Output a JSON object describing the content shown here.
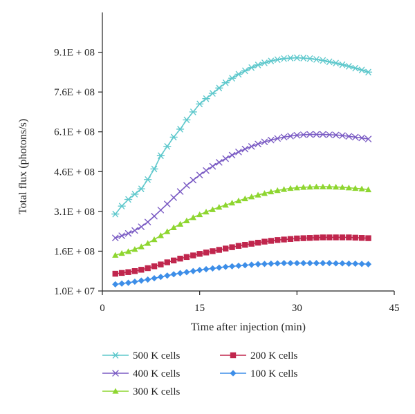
{
  "chart_data": {
    "type": "line",
    "xlabel": "Time after injection (min)",
    "ylabel": "Total flux (photons/s)",
    "xlim": [
      0,
      45
    ],
    "ylim": [
      10000000,
      1060000000
    ],
    "x_ticks": [
      0,
      15,
      30,
      45
    ],
    "x_tick_labels": [
      "0",
      "15",
      "30",
      "45"
    ],
    "y_ticks": [
      10000000,
      160000000,
      310000000,
      460000000,
      610000000,
      760000000,
      910000000
    ],
    "y_tick_labels": [
      "1.0E + 07",
      "1.6E + 08",
      "3.1E + 08",
      "4.6E + 08",
      "6.1E + 08",
      "7.6E + 08",
      "9.1E + 08"
    ],
    "grid": false,
    "legend_position": "bottom",
    "x": [
      2,
      3,
      4,
      5,
      6,
      7,
      8,
      9,
      10,
      11,
      12,
      13,
      14,
      15,
      16,
      17,
      18,
      19,
      20,
      21,
      22,
      23,
      24,
      25,
      26,
      27,
      28,
      29,
      30,
      31,
      32,
      33,
      34,
      35,
      36,
      37,
      38,
      39,
      40,
      41
    ],
    "series": [
      {
        "name": "500 K cells",
        "color": "#5ec8cc",
        "marker": "asterisk",
        "values": [
          300000000,
          330000000,
          355000000,
          375000000,
          395000000,
          430000000,
          470000000,
          520000000,
          555000000,
          590000000,
          620000000,
          655000000,
          685000000,
          715000000,
          735000000,
          755000000,
          775000000,
          795000000,
          812000000,
          827000000,
          840000000,
          852000000,
          862000000,
          870000000,
          877000000,
          882000000,
          886000000,
          888000000,
          889000000,
          888000000,
          886000000,
          883000000,
          879000000,
          874000000,
          869000000,
          863000000,
          857000000,
          850000000,
          843000000,
          835000000
        ]
      },
      {
        "name": "400 K cells",
        "color": "#7b5cc4",
        "marker": "x",
        "values": [
          210000000,
          218000000,
          227000000,
          238000000,
          252000000,
          270000000,
          292000000,
          315000000,
          338000000,
          362000000,
          385000000,
          408000000,
          428000000,
          447000000,
          464000000,
          480000000,
          495000000,
          509000000,
          522000000,
          534000000,
          545000000,
          555000000,
          564000000,
          572000000,
          579000000,
          585000000,
          590000000,
          594000000,
          597000000,
          599000000,
          600000000,
          600000000,
          600000000,
          599000000,
          598000000,
          596000000,
          593000000,
          590000000,
          587000000,
          583000000
        ]
      },
      {
        "name": "300 K cells",
        "color": "#8ed630",
        "marker": "triangle",
        "values": [
          145000000,
          152000000,
          159000000,
          167000000,
          177000000,
          190000000,
          204000000,
          219000000,
          234000000,
          249000000,
          262000000,
          275000000,
          287000000,
          298000000,
          308000000,
          317000000,
          326000000,
          334000000,
          342000000,
          350000000,
          358000000,
          365000000,
          372000000,
          378000000,
          384000000,
          389000000,
          393000000,
          397000000,
          399000000,
          401000000,
          402000000,
          403000000,
          403000000,
          403000000,
          402000000,
          401000000,
          399000000,
          397000000,
          395000000,
          392000000
        ]
      },
      {
        "name": "200 K cells",
        "color": "#c0264d",
        "marker": "square",
        "values": [
          75000000,
          78000000,
          81000000,
          85000000,
          90000000,
          96000000,
          103000000,
          110000000,
          118000000,
          125000000,
          132000000,
          138000000,
          144000000,
          150000000,
          155000000,
          160000000,
          165000000,
          170000000,
          175000000,
          180000000,
          184000000,
          188000000,
          192000000,
          196000000,
          199000000,
          202000000,
          204000000,
          206000000,
          208000000,
          209000000,
          210000000,
          211000000,
          212000000,
          212000000,
          212000000,
          212000000,
          212000000,
          211000000,
          210000000,
          209000000
        ]
      },
      {
        "name": "100 K cells",
        "color": "#3d8ee8",
        "marker": "diamond",
        "values": [
          35000000,
          38000000,
          41000000,
          45000000,
          49000000,
          53000000,
          58000000,
          63000000,
          68000000,
          73000000,
          77000000,
          81000000,
          85000000,
          89000000,
          92000000,
          95000000,
          98000000,
          101000000,
          103000000,
          105000000,
          107000000,
          109000000,
          111000000,
          112000000,
          113000000,
          114000000,
          115000000,
          115000000,
          115000000,
          115000000,
          115000000,
          115000000,
          115000000,
          115000000,
          114000000,
          114000000,
          113000000,
          113000000,
          112000000,
          111000000
        ]
      }
    ]
  }
}
